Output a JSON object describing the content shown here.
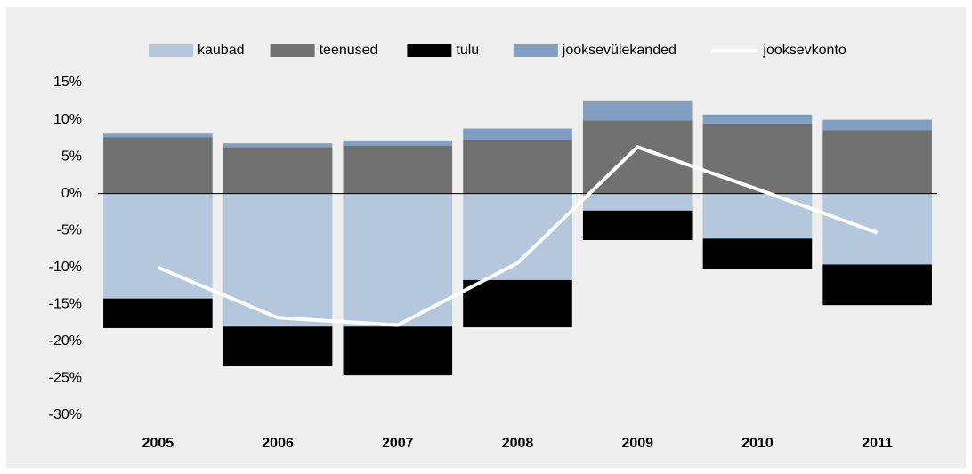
{
  "chart_data": {
    "type": "bar",
    "categories": [
      "2005",
      "2006",
      "2007",
      "2008",
      "2009",
      "2010",
      "2011"
    ],
    "series": [
      {
        "name": "kaubad",
        "color": "#b4c7dc",
        "values": [
          -14.2,
          -18.0,
          -18.0,
          -11.7,
          -2.3,
          -6.1,
          -9.6
        ]
      },
      {
        "name": "teenused",
        "color": "#717171",
        "values": [
          7.6,
          6.3,
          6.5,
          7.3,
          9.9,
          9.5,
          8.6
        ]
      },
      {
        "name": "tulu",
        "color": "#000000",
        "values": [
          -4.0,
          -5.3,
          -6.6,
          -6.4,
          -4.0,
          -4.1,
          -5.5
        ]
      },
      {
        "name": "jooksevülekanded",
        "color": "#809fc2",
        "values": [
          0.5,
          0.5,
          0.7,
          1.5,
          2.6,
          1.2,
          1.4
        ]
      },
      {
        "name": "jooksevkonto",
        "type": "line",
        "color": "#ffffff",
        "values": [
          -10.0,
          -16.8,
          -17.8,
          -9.4,
          6.3,
          0.6,
          -5.3
        ]
      }
    ],
    "ylim": [
      -30,
      15
    ],
    "yticks": [
      {
        "value": -30,
        "label": "-30%"
      },
      {
        "value": -25,
        "label": "-25%"
      },
      {
        "value": -20,
        "label": "-20%"
      },
      {
        "value": -15,
        "label": "-15%"
      },
      {
        "value": -10,
        "label": "-10%"
      },
      {
        "value": -5,
        "label": "-5%"
      },
      {
        "value": 0,
        "label": "0%"
      },
      {
        "value": 5,
        "label": "5%"
      },
      {
        "value": 10,
        "label": "10%"
      },
      {
        "value": 15,
        "label": "15%"
      }
    ],
    "legend": "top",
    "grid": false
  }
}
